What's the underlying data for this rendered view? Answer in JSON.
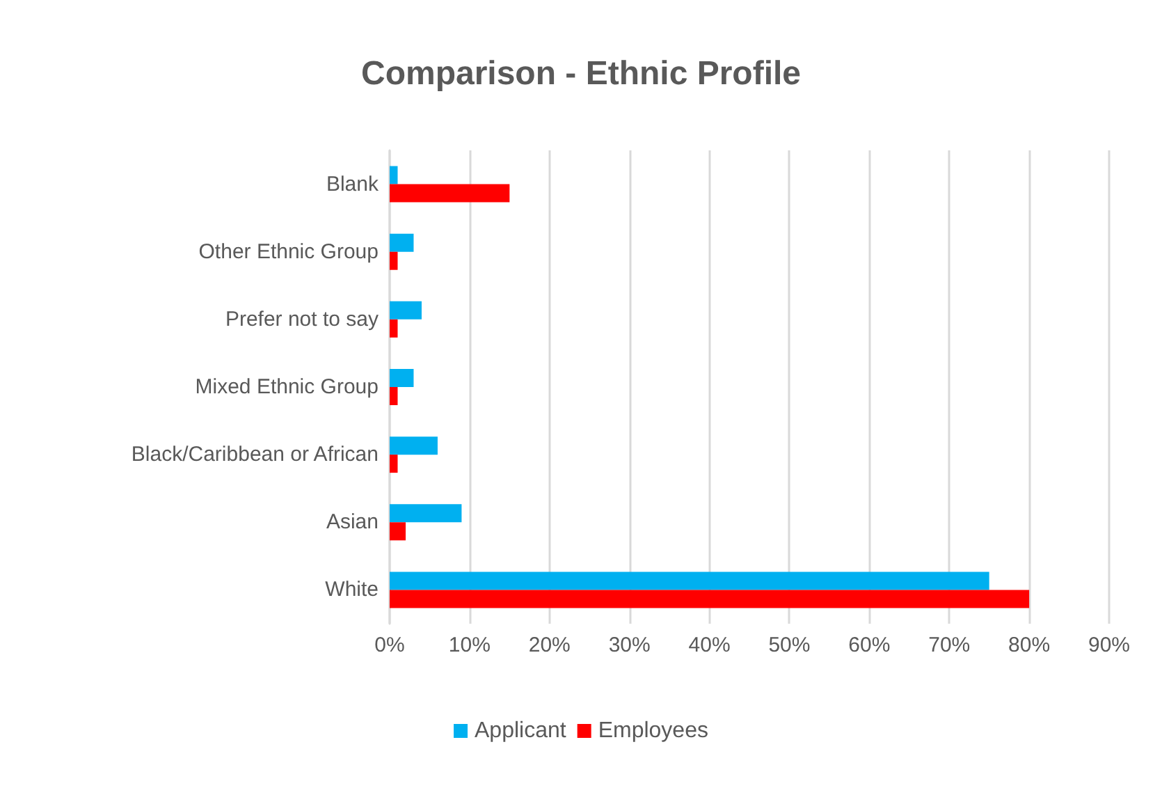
{
  "chart_data": {
    "type": "bar",
    "orientation": "horizontal",
    "title": "Comparison - Ethnic Profile",
    "categories": [
      "Blank",
      "Other Ethnic Group",
      "Prefer not to say",
      "Mixed Ethnic Group",
      "Black/Caribbean or African",
      "Asian",
      "White"
    ],
    "series": [
      {
        "name": "Applicant",
        "color": "#00b0f0",
        "values": [
          1,
          3,
          4,
          3,
          6,
          9,
          75
        ]
      },
      {
        "name": "Employees",
        "color": "#ff0000",
        "values": [
          15,
          1,
          1,
          1,
          1,
          2,
          80
        ]
      }
    ],
    "xlim": [
      0,
      90
    ],
    "xticks": [
      {
        "value": 0,
        "label": "0%"
      },
      {
        "value": 10,
        "label": "10%"
      },
      {
        "value": 20,
        "label": "20%"
      },
      {
        "value": 30,
        "label": "30%"
      },
      {
        "value": 40,
        "label": "40%"
      },
      {
        "value": 50,
        "label": "50%"
      },
      {
        "value": 60,
        "label": "60%"
      },
      {
        "value": 70,
        "label": "70%"
      },
      {
        "value": 80,
        "label": "80%"
      },
      {
        "value": 90,
        "label": "90%"
      }
    ],
    "grid": "x",
    "legend": "bottom"
  }
}
